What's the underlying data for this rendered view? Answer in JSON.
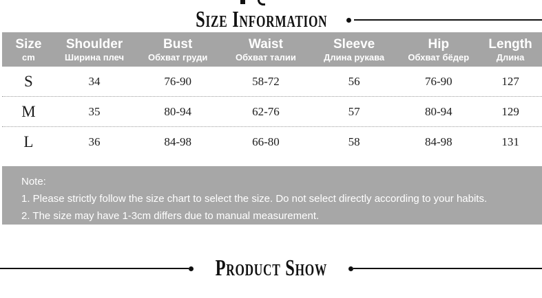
{
  "titles": {
    "top": "Size Information",
    "bottom": "Product Show"
  },
  "size_table": {
    "unit_note": "cm",
    "columns": [
      {
        "en": "Size",
        "ru": "cm"
      },
      {
        "en": "Shoulder",
        "ru": "Ширина плеч"
      },
      {
        "en": "Bust",
        "ru": "Обхват груди"
      },
      {
        "en": "Waist",
        "ru": "Обхват талии"
      },
      {
        "en": "Sleeve",
        "ru": "Длина рукава"
      },
      {
        "en": "Hip",
        "ru": "Обхват бёдер"
      },
      {
        "en": "Length",
        "ru": "Длина"
      }
    ],
    "rows": [
      {
        "size": "S",
        "shoulder": "34",
        "bust": "76-90",
        "waist": "58-72",
        "sleeve": "56",
        "hip": "76-90",
        "length": "127"
      },
      {
        "size": "M",
        "shoulder": "35",
        "bust": "80-94",
        "waist": "62-76",
        "sleeve": "57",
        "hip": "80-94",
        "length": "129"
      },
      {
        "size": "L",
        "shoulder": "36",
        "bust": "84-98",
        "waist": "66-80",
        "sleeve": "58",
        "hip": "84-98",
        "length": "131"
      }
    ]
  },
  "note": {
    "title": "Note:",
    "lines": [
      "1. Please strictly follow the size chart to select the size. Do not select directly according to your habits.",
      "2. The size may have 1-3cm differs due to manual measurement."
    ]
  },
  "colors": {
    "header_bg": "#a5a5a5",
    "note_bg": "#a7a7a7",
    "accent_text": "#111111",
    "table_text": "#1c1c1c",
    "light_text": "#ffffff"
  }
}
